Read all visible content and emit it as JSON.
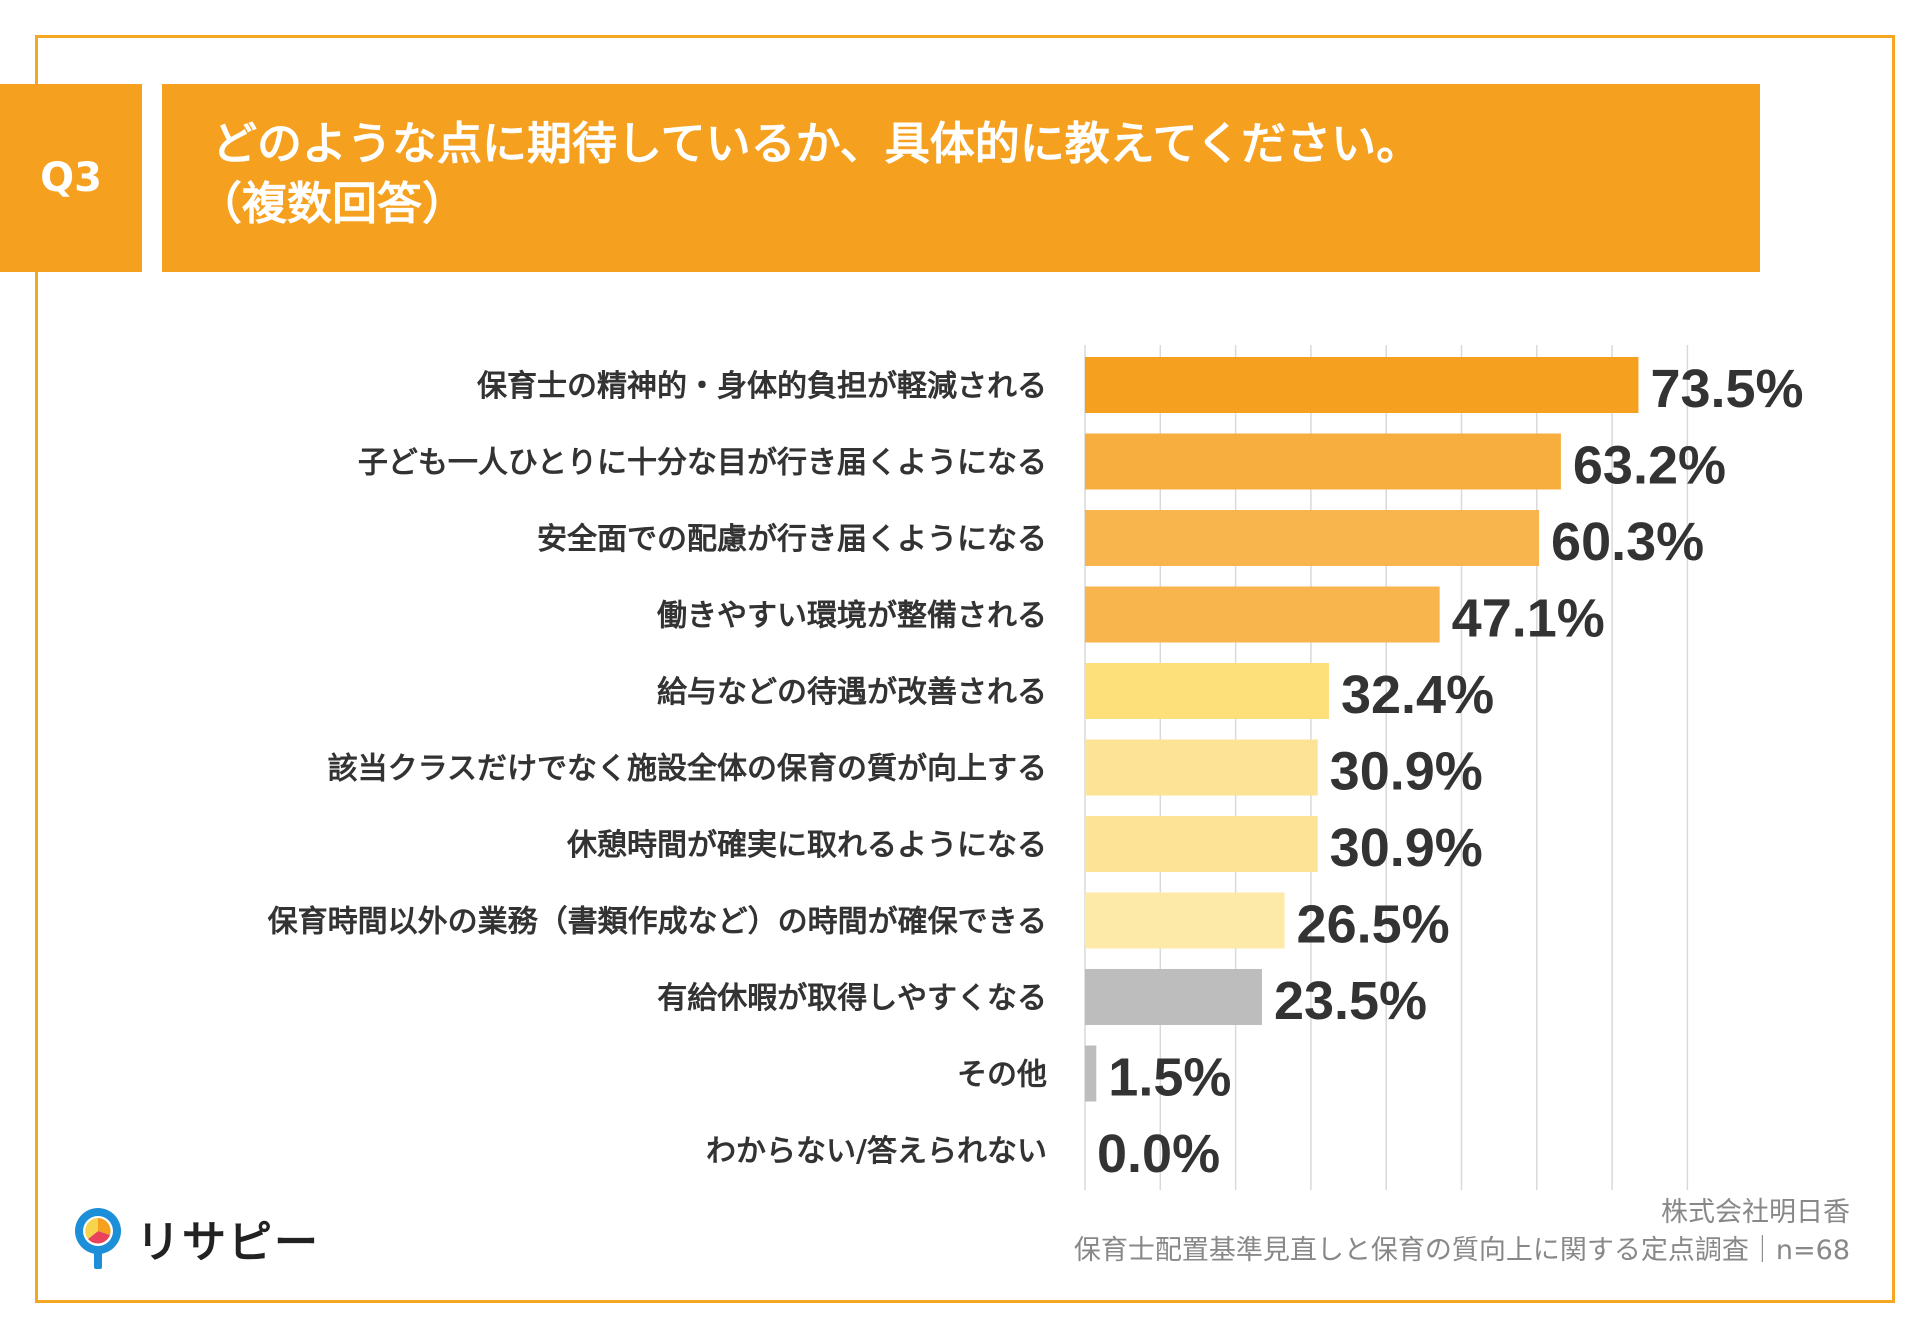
{
  "header": {
    "q_label": "Q3",
    "title_line1": "どのような点に期待しているか、具体的に教えてください。",
    "title_line2": "（複数回答）"
  },
  "chart_data": {
    "type": "bar",
    "orientation": "horizontal",
    "categories": [
      "保育士の精神的・身体的負担が軽減される",
      "子ども一人ひとりに十分な目が行き届くようになる",
      "安全面での配慮が行き届くようになる",
      "働きやすい環境が整備される",
      "給与などの待遇が改善される",
      "該当クラスだけでなく施設全体の保育の質が向上する",
      "休憩時間が確実に取れるようになる",
      "保育時間以外の業務（書類作成など）の時間が確保できる",
      "有給休暇が取得しやすくなる",
      "その他",
      "わからない/答えられない"
    ],
    "values": [
      73.5,
      63.2,
      60.3,
      47.1,
      32.4,
      30.9,
      30.9,
      26.5,
      23.5,
      1.5,
      0.0
    ],
    "value_labels": [
      "73.5%",
      "63.2%",
      "60.3%",
      "47.1%",
      "32.4%",
      "30.9%",
      "30.9%",
      "26.5%",
      "23.5%",
      "1.5%",
      "0.0%"
    ],
    "colors": [
      "#f5a01e",
      "#f8ae3f",
      "#f8b54d",
      "#f8b54d",
      "#fde07a",
      "#fde395",
      "#fde395",
      "#fdeaa8",
      "#bdbdbd",
      "#bdbdbd",
      "#bdbdbd"
    ],
    "xlim": [
      0,
      80
    ],
    "grid": true
  },
  "source": {
    "company": "株式会社明日香",
    "survey": "保育士配置基準見直しと保育の質向上に関する定点調査｜n=68"
  },
  "logo": {
    "text": "リサピー"
  }
}
